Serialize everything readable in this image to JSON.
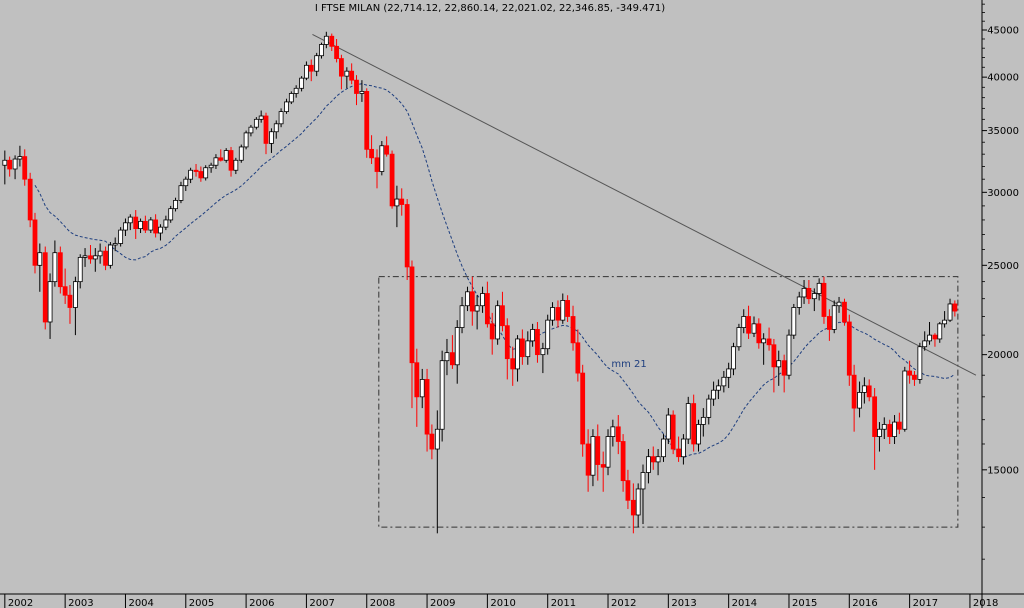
{
  "chart_data": {
    "type": "candlestick",
    "title": "I FTSE MILAN (22,714.12, 22,860.14, 22,021.02, 22,346.85, -349.471)",
    "ma_label": "mm 21",
    "y_ticks": [
      45000,
      40000,
      35000,
      30000,
      25000,
      20000,
      15000
    ],
    "ylim": [
      11000,
      48500
    ],
    "x_labels": [
      "2002",
      "2003",
      "2004",
      "2005",
      "2006",
      "2007",
      "2008",
      "2009",
      "2010",
      "2011",
      "2012",
      "2013",
      "2014",
      "2015",
      "2016",
      "2017",
      "2018"
    ],
    "xlim": [
      2001.92,
      2018.2
    ],
    "scale": "log",
    "colors": {
      "up": "#ffffff",
      "down": "#ff0000",
      "ma": "#1f3f7f",
      "trendline": "#555555",
      "box": "#333333"
    },
    "trendline": {
      "start": [
        2007.1,
        44500
      ],
      "end": [
        2018.1,
        19000
      ]
    },
    "rectangle": {
      "x": [
        2008.2,
        2017.8
      ],
      "y": [
        13000,
        24300
      ]
    },
    "candles": [
      [
        2002.0,
        32100,
        33300,
        30600,
        32500
      ],
      [
        2002.08,
        32500,
        32800,
        31200,
        31800
      ],
      [
        2002.17,
        31800,
        32900,
        31000,
        32600
      ],
      [
        2002.25,
        32600,
        33700,
        32000,
        32800
      ],
      [
        2002.33,
        32800,
        33400,
        30500,
        31000
      ],
      [
        2002.42,
        31000,
        31500,
        27500,
        28000
      ],
      [
        2002.5,
        28000,
        28500,
        24500,
        25000
      ],
      [
        2002.58,
        25000,
        26400,
        23400,
        25800
      ],
      [
        2002.67,
        25800,
        26200,
        21300,
        21700
      ],
      [
        2002.75,
        21700,
        24500,
        20800,
        24000
      ],
      [
        2002.83,
        24000,
        26600,
        23700,
        25800
      ],
      [
        2002.92,
        25800,
        26200,
        23300,
        23700
      ],
      [
        2003.0,
        23700,
        24800,
        22700,
        23200
      ],
      [
        2003.08,
        23200,
        23800,
        21600,
        22500
      ],
      [
        2003.17,
        22500,
        24300,
        21000,
        24000
      ],
      [
        2003.25,
        24000,
        25700,
        23600,
        25500
      ],
      [
        2003.33,
        25500,
        26100,
        24900,
        25600
      ],
      [
        2003.42,
        25600,
        26300,
        25100,
        25400
      ],
      [
        2003.5,
        25400,
        26100,
        24600,
        25600
      ],
      [
        2003.58,
        25600,
        26400,
        25100,
        25900
      ],
      [
        2003.67,
        25900,
        26200,
        24700,
        25000
      ],
      [
        2003.75,
        25000,
        26500,
        24800,
        26300
      ],
      [
        2003.83,
        26300,
        26800,
        25900,
        26400
      ],
      [
        2003.92,
        26400,
        27500,
        26200,
        27300
      ],
      [
        2004.0,
        27300,
        28100,
        26900,
        27800
      ],
      [
        2004.08,
        27800,
        28400,
        27300,
        28200
      ],
      [
        2004.17,
        28200,
        28700,
        26700,
        27400
      ],
      [
        2004.25,
        27400,
        28100,
        27100,
        27900
      ],
      [
        2004.33,
        27900,
        28300,
        27100,
        27300
      ],
      [
        2004.42,
        27300,
        28200,
        27100,
        28000
      ],
      [
        2004.5,
        28000,
        28400,
        26800,
        27100
      ],
      [
        2004.58,
        27100,
        27700,
        26600,
        27500
      ],
      [
        2004.67,
        27500,
        28300,
        27300,
        28000
      ],
      [
        2004.75,
        28000,
        29000,
        27800,
        28800
      ],
      [
        2004.83,
        28800,
        29600,
        28600,
        29400
      ],
      [
        2004.92,
        29400,
        30800,
        29200,
        30500
      ],
      [
        2005.0,
        30500,
        31200,
        30100,
        31000
      ],
      [
        2005.08,
        31000,
        31900,
        30700,
        31700
      ],
      [
        2005.17,
        31700,
        32200,
        31200,
        31600
      ],
      [
        2005.25,
        31600,
        32000,
        30800,
        31100
      ],
      [
        2005.33,
        31100,
        32100,
        30900,
        31900
      ],
      [
        2005.42,
        31900,
        32300,
        31500,
        32100
      ],
      [
        2005.5,
        32100,
        33000,
        31800,
        32700
      ],
      [
        2005.58,
        32700,
        33400,
        32400,
        32500
      ],
      [
        2005.67,
        32500,
        33500,
        32300,
        33300
      ],
      [
        2005.75,
        33300,
        33600,
        31200,
        31700
      ],
      [
        2005.83,
        31700,
        32700,
        31400,
        32500
      ],
      [
        2005.92,
        32500,
        33800,
        32300,
        33600
      ],
      [
        2006.0,
        33600,
        35000,
        33400,
        34800
      ],
      [
        2006.08,
        34800,
        35500,
        34500,
        35300
      ],
      [
        2006.17,
        35300,
        36200,
        35100,
        36000
      ],
      [
        2006.25,
        36000,
        36800,
        35700,
        36300
      ],
      [
        2006.33,
        36300,
        36600,
        33000,
        33900
      ],
      [
        2006.42,
        33900,
        35200,
        33100,
        34900
      ],
      [
        2006.5,
        34900,
        35900,
        34300,
        35600
      ],
      [
        2006.58,
        35600,
        37000,
        35300,
        36700
      ],
      [
        2006.67,
        36700,
        37900,
        36500,
        37600
      ],
      [
        2006.75,
        37600,
        38600,
        37400,
        38400
      ],
      [
        2006.83,
        38400,
        39200,
        38000,
        38900
      ],
      [
        2006.92,
        38900,
        40100,
        38600,
        39900
      ],
      [
        2007.0,
        39900,
        41600,
        39700,
        41200
      ],
      [
        2007.08,
        41200,
        41800,
        39600,
        40600
      ],
      [
        2007.17,
        40600,
        42500,
        40100,
        42200
      ],
      [
        2007.25,
        42200,
        43600,
        41900,
        43400
      ],
      [
        2007.33,
        43400,
        44800,
        43000,
        44300
      ],
      [
        2007.42,
        44300,
        44600,
        42700,
        43200
      ],
      [
        2007.5,
        43200,
        44000,
        41500,
        41900
      ],
      [
        2007.58,
        41900,
        42300,
        38800,
        40100
      ],
      [
        2007.67,
        40100,
        41000,
        38900,
        40600
      ],
      [
        2007.75,
        40600,
        41400,
        39300,
        39700
      ],
      [
        2007.83,
        39700,
        40200,
        37300,
        38400
      ],
      [
        2007.92,
        38400,
        39700,
        37600,
        38600
      ],
      [
        2008.0,
        38600,
        38900,
        32700,
        33400
      ],
      [
        2008.08,
        33400,
        34600,
        32200,
        32700
      ],
      [
        2008.17,
        32700,
        33400,
        30300,
        31600
      ],
      [
        2008.25,
        31600,
        34100,
        31300,
        33700
      ],
      [
        2008.33,
        33700,
        34500,
        32800,
        33000
      ],
      [
        2008.42,
        33000,
        33300,
        28800,
        29000
      ],
      [
        2008.5,
        29000,
        30500,
        27500,
        29500
      ],
      [
        2008.58,
        29500,
        30300,
        28300,
        29100
      ],
      [
        2008.67,
        29100,
        29500,
        24100,
        24900
      ],
      [
        2008.75,
        24900,
        25300,
        17500,
        19600
      ],
      [
        2008.83,
        19600,
        20300,
        16700,
        18000
      ],
      [
        2008.92,
        18000,
        19300,
        17500,
        18800
      ],
      [
        2009.0,
        18800,
        19300,
        15700,
        16400
      ],
      [
        2009.08,
        16400,
        16800,
        15400,
        15800
      ],
      [
        2009.17,
        15800,
        17400,
        12800,
        16600
      ],
      [
        2009.25,
        16600,
        20200,
        16100,
        19700
      ],
      [
        2009.33,
        19700,
        20800,
        19000,
        20100
      ],
      [
        2009.42,
        20100,
        21000,
        19300,
        19500
      ],
      [
        2009.5,
        19500,
        21800,
        18600,
        21400
      ],
      [
        2009.58,
        21400,
        23100,
        21100,
        22600
      ],
      [
        2009.67,
        22600,
        23700,
        22300,
        23400
      ],
      [
        2009.75,
        23400,
        24300,
        21500,
        22300
      ],
      [
        2009.83,
        22300,
        23200,
        21300,
        22600
      ],
      [
        2009.92,
        22600,
        23700,
        22200,
        23300
      ],
      [
        2010.0,
        23300,
        24000,
        21400,
        21600
      ],
      [
        2010.08,
        21600,
        22200,
        20000,
        20800
      ],
      [
        2010.17,
        20800,
        22900,
        20500,
        22600
      ],
      [
        2010.25,
        22600,
        23400,
        21200,
        21500
      ],
      [
        2010.33,
        21500,
        21900,
        18800,
        19800
      ],
      [
        2010.42,
        19800,
        20400,
        18500,
        19300
      ],
      [
        2010.5,
        19300,
        21000,
        18700,
        20800
      ],
      [
        2010.58,
        20800,
        21300,
        19500,
        19900
      ],
      [
        2010.67,
        19900,
        21200,
        19500,
        20700
      ],
      [
        2010.75,
        20700,
        21600,
        20400,
        21300
      ],
      [
        2010.83,
        21300,
        21700,
        19600,
        20000
      ],
      [
        2010.92,
        20000,
        20600,
        19100,
        20300
      ],
      [
        2011.0,
        20300,
        22100,
        20000,
        21800
      ],
      [
        2011.08,
        21800,
        22800,
        21500,
        22500
      ],
      [
        2011.17,
        22500,
        22900,
        21400,
        21800
      ],
      [
        2011.25,
        21800,
        23300,
        21600,
        22900
      ],
      [
        2011.33,
        22900,
        23200,
        21700,
        22000
      ],
      [
        2011.42,
        22000,
        22600,
        20200,
        20600
      ],
      [
        2011.5,
        20600,
        21300,
        18700,
        19100
      ],
      [
        2011.58,
        19100,
        19500,
        15500,
        16000
      ],
      [
        2011.67,
        16000,
        16600,
        14200,
        14800
      ],
      [
        2011.75,
        14800,
        16600,
        14400,
        16300
      ],
      [
        2011.83,
        16300,
        16800,
        14600,
        15200
      ],
      [
        2011.92,
        15200,
        15700,
        14200,
        15100
      ],
      [
        2012.0,
        15100,
        16600,
        14800,
        16300
      ],
      [
        2012.08,
        16300,
        17000,
        15900,
        16700
      ],
      [
        2012.17,
        16700,
        17200,
        15600,
        16100
      ],
      [
        2012.25,
        16100,
        16400,
        14200,
        14600
      ],
      [
        2012.33,
        14600,
        15000,
        13600,
        13900
      ],
      [
        2012.42,
        13900,
        14500,
        12800,
        13400
      ],
      [
        2012.5,
        13400,
        14500,
        13000,
        14300
      ],
      [
        2012.58,
        14300,
        15200,
        13100,
        14900
      ],
      [
        2012.67,
        14900,
        15800,
        14500,
        15500
      ],
      [
        2012.75,
        15500,
        15900,
        15000,
        15300
      ],
      [
        2012.83,
        15300,
        15800,
        14800,
        15500
      ],
      [
        2012.92,
        15500,
        16400,
        15300,
        16200
      ],
      [
        2013.0,
        16200,
        17500,
        16000,
        17200
      ],
      [
        2013.08,
        17200,
        17400,
        15600,
        15800
      ],
      [
        2013.17,
        15800,
        16300,
        15300,
        15500
      ],
      [
        2013.25,
        15500,
        16400,
        15200,
        16200
      ],
      [
        2013.33,
        16200,
        18000,
        16000,
        17700
      ],
      [
        2013.42,
        17700,
        18100,
        15700,
        16000
      ],
      [
        2013.5,
        16000,
        17000,
        15700,
        16800
      ],
      [
        2013.58,
        16800,
        17500,
        16300,
        17100
      ],
      [
        2013.67,
        17100,
        18100,
        16800,
        17900
      ],
      [
        2013.75,
        17900,
        18700,
        17600,
        18300
      ],
      [
        2013.83,
        18300,
        18800,
        17900,
        18500
      ],
      [
        2013.92,
        18500,
        19200,
        18200,
        18900
      ],
      [
        2014.0,
        18900,
        19600,
        18400,
        19300
      ],
      [
        2014.08,
        19300,
        20600,
        19000,
        20400
      ],
      [
        2014.17,
        20400,
        21600,
        20200,
        21400
      ],
      [
        2014.25,
        21400,
        22400,
        21100,
        22000
      ],
      [
        2014.33,
        22000,
        22600,
        20800,
        21100
      ],
      [
        2014.42,
        21100,
        22000,
        20900,
        21600
      ],
      [
        2014.5,
        21600,
        21900,
        20300,
        20600
      ],
      [
        2014.58,
        20600,
        21100,
        19500,
        20800
      ],
      [
        2014.67,
        20800,
        21400,
        20200,
        20500
      ],
      [
        2014.75,
        20500,
        20800,
        18200,
        19400
      ],
      [
        2014.83,
        19400,
        20200,
        18500,
        19700
      ],
      [
        2014.92,
        19700,
        20000,
        18200,
        19000
      ],
      [
        2015.0,
        19000,
        21300,
        18800,
        21000
      ],
      [
        2015.08,
        21000,
        22700,
        20800,
        22500
      ],
      [
        2015.17,
        22500,
        23400,
        22100,
        23100
      ],
      [
        2015.25,
        23100,
        24100,
        22700,
        23600
      ],
      [
        2015.33,
        23600,
        24100,
        22700,
        23000
      ],
      [
        2015.42,
        23000,
        23600,
        22300,
        23300
      ],
      [
        2015.5,
        23300,
        24200,
        22900,
        23900
      ],
      [
        2015.58,
        23900,
        24300,
        21600,
        22000
      ],
      [
        2015.67,
        22000,
        22400,
        20700,
        21300
      ],
      [
        2015.75,
        21300,
        22900,
        21100,
        22600
      ],
      [
        2015.83,
        22600,
        23100,
        22200,
        22800
      ],
      [
        2015.92,
        22800,
        23000,
        21500,
        21700
      ],
      [
        2016.0,
        21700,
        22100,
        18500,
        19000
      ],
      [
        2016.08,
        19000,
        19500,
        16500,
        17500
      ],
      [
        2016.17,
        17500,
        18700,
        17100,
        18200
      ],
      [
        2016.25,
        18200,
        18900,
        17700,
        18500
      ],
      [
        2016.33,
        18500,
        18800,
        17800,
        18000
      ],
      [
        2016.42,
        18000,
        18400,
        15000,
        16300
      ],
      [
        2016.5,
        16300,
        16900,
        15700,
        16600
      ],
      [
        2016.58,
        16600,
        17100,
        16200,
        16800
      ],
      [
        2016.67,
        16800,
        17000,
        16000,
        16300
      ],
      [
        2016.75,
        16300,
        17200,
        16000,
        16900
      ],
      [
        2016.83,
        16900,
        17300,
        16400,
        16600
      ],
      [
        2016.92,
        16600,
        19400,
        16500,
        19200
      ],
      [
        2017.0,
        19200,
        19700,
        18600,
        19000
      ],
      [
        2017.08,
        19000,
        19200,
        18500,
        18800
      ],
      [
        2017.17,
        18800,
        20600,
        18600,
        20400
      ],
      [
        2017.25,
        20400,
        21200,
        20200,
        20700
      ],
      [
        2017.33,
        20700,
        21700,
        20500,
        21000
      ],
      [
        2017.42,
        21000,
        21100,
        20400,
        20800
      ],
      [
        2017.5,
        20800,
        21700,
        20600,
        21600
      ],
      [
        2017.58,
        21600,
        22300,
        21400,
        21800
      ],
      [
        2017.67,
        21800,
        23000,
        21700,
        22700
      ],
      [
        2017.75,
        22700,
        22900,
        22000,
        22300
      ]
    ]
  }
}
